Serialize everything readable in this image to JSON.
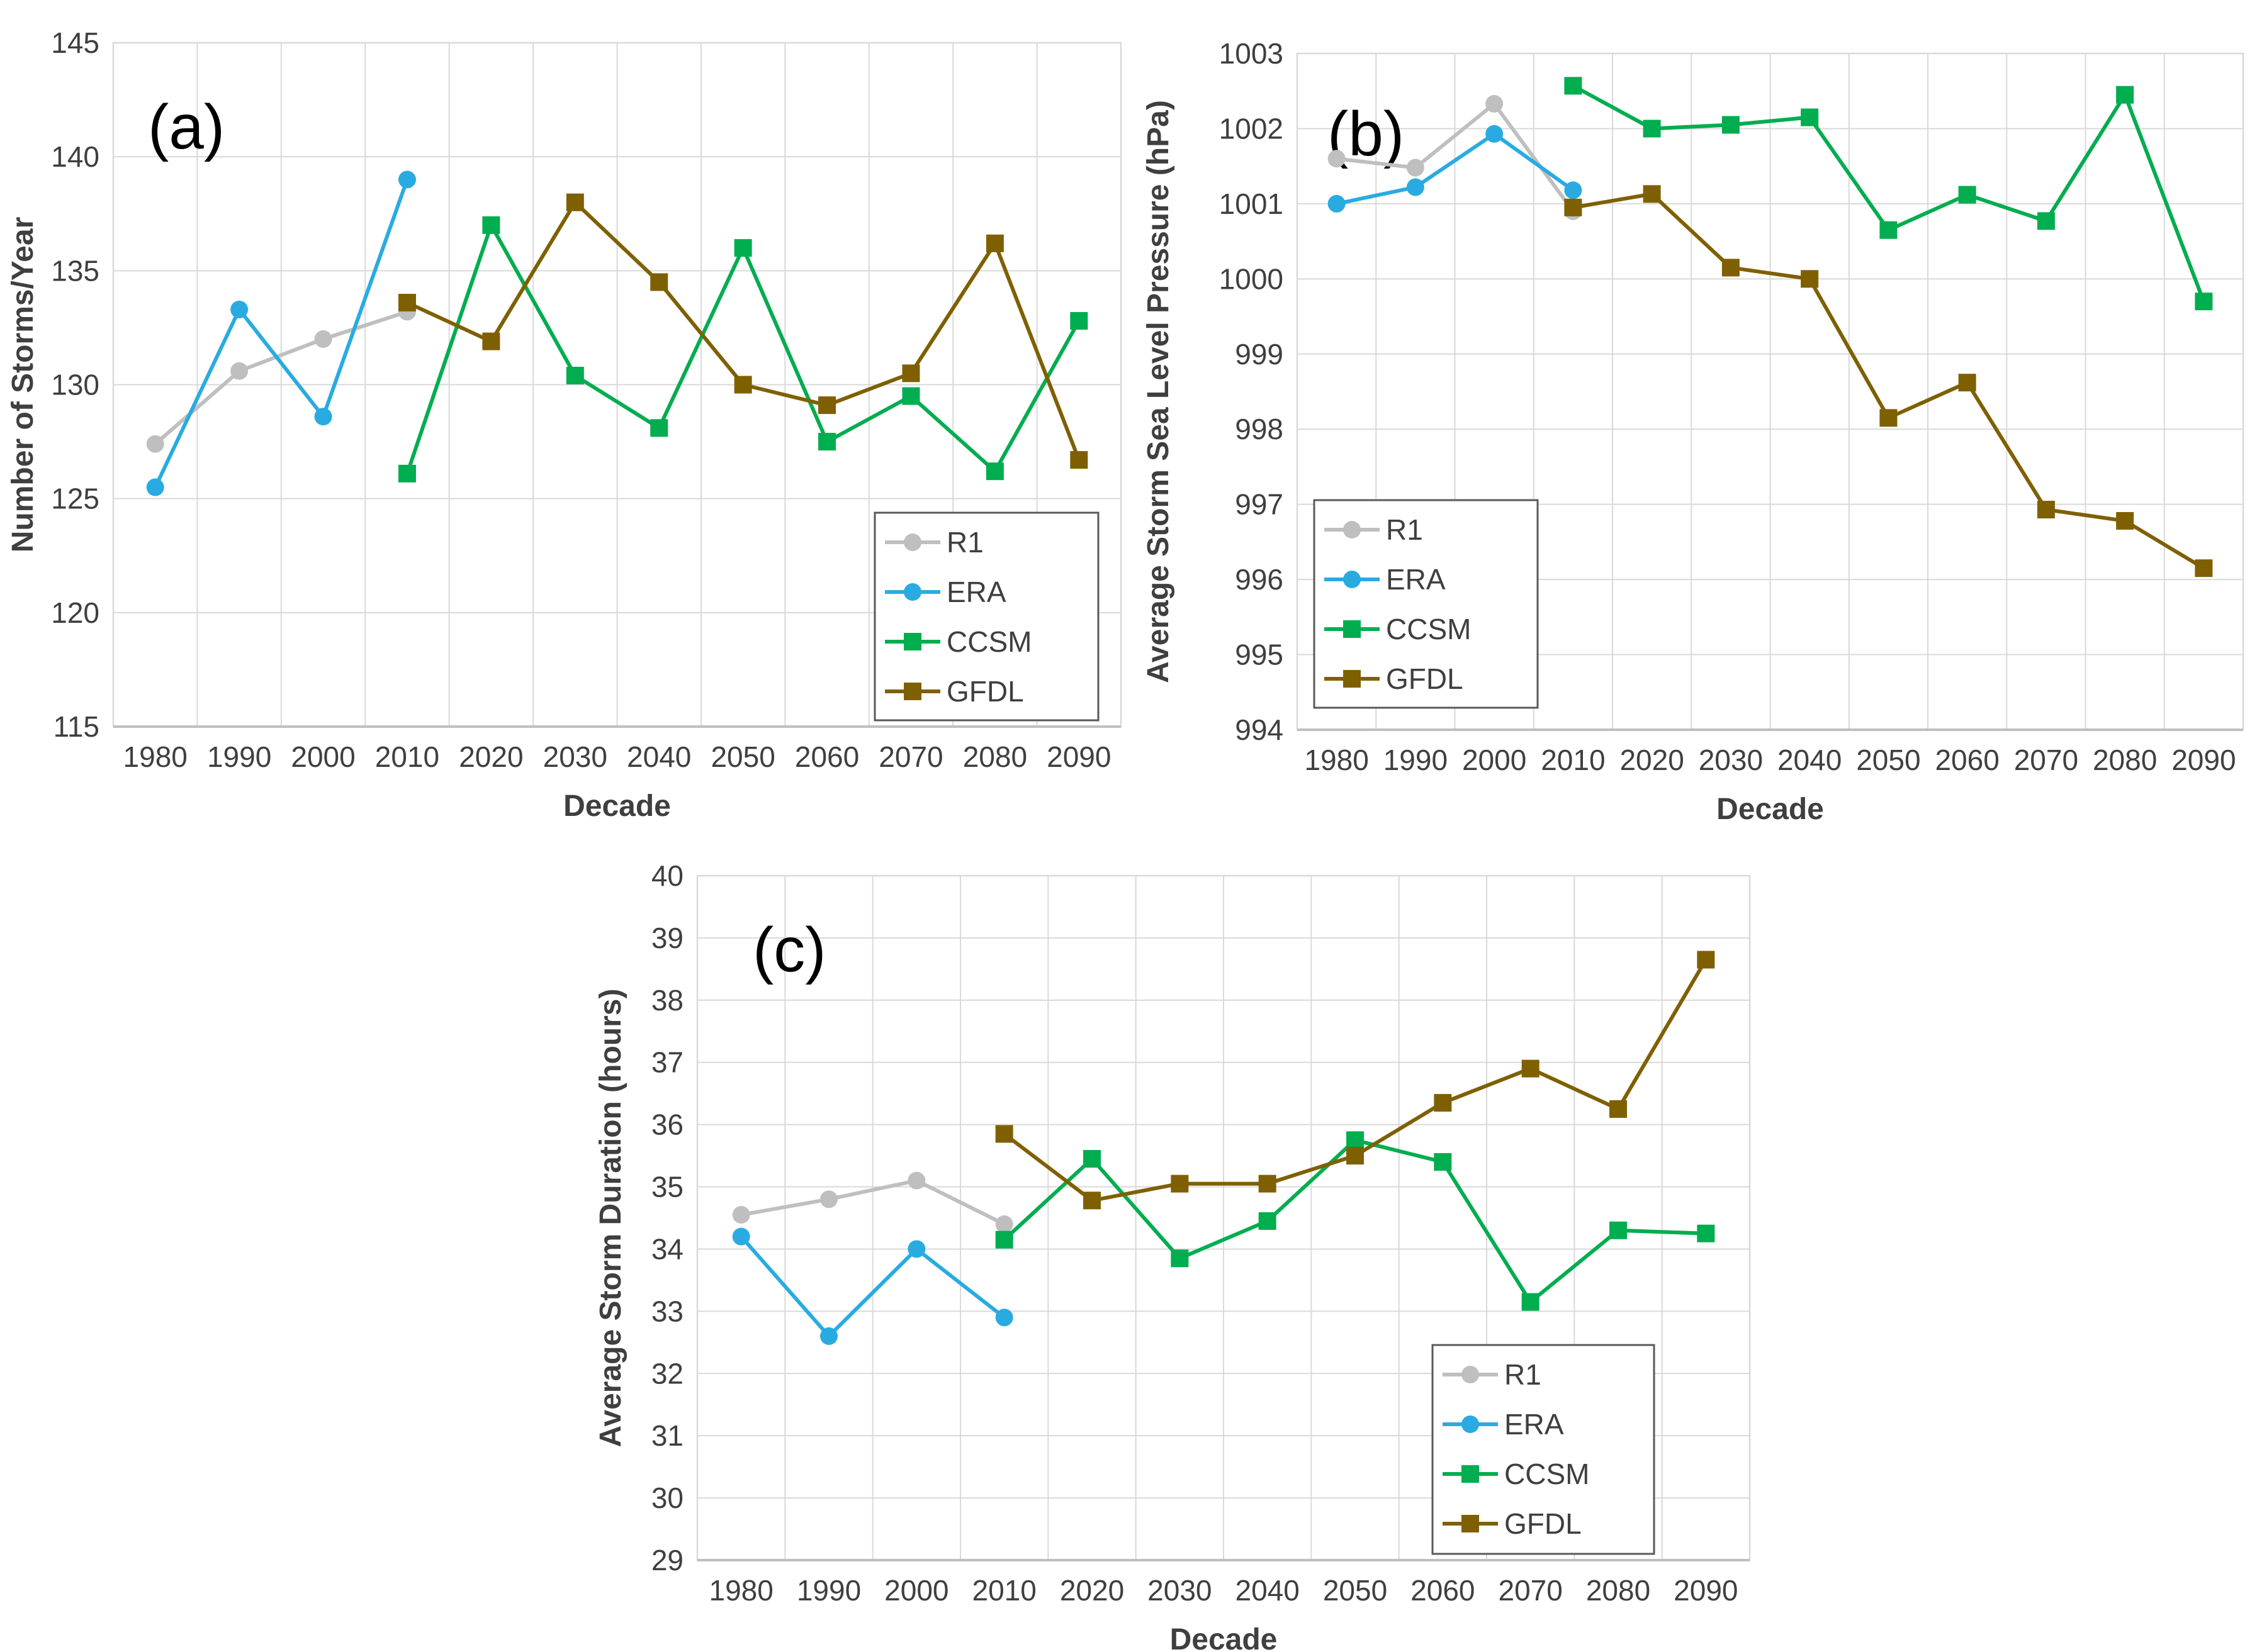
{
  "figure": {
    "description": "Three-panel decadal storm statistics figure",
    "panels": [
      "(a)",
      "(b)",
      "(c)"
    ]
  },
  "legend": {
    "entries": [
      "R1",
      "ERA",
      "CCSM",
      "GFDL"
    ]
  },
  "colors": {
    "R1": "#BFBFBF",
    "ERA": "#29ABE2",
    "CCSM": "#00AD4F",
    "GFDL": "#7F6000",
    "grid": "#D9D9D9",
    "axis_text": "#3F3F3F",
    "legend_border": "#595959",
    "panel_letter": "#000000"
  },
  "chart_data": [
    {
      "type": "line",
      "panel_label": "(a)",
      "xlabel": "Decade",
      "ylabel": "Number of Storms/Year",
      "x_categories": [
        "1980",
        "1990",
        "2000",
        "2010",
        "2020",
        "2030",
        "2040",
        "2050",
        "2060",
        "2070",
        "2080",
        "2090"
      ],
      "ylim": [
        115,
        145
      ],
      "ytick_step": 5,
      "grid": true,
      "legend_position": "bottom-right",
      "series": [
        {
          "name": "R1",
          "color": "#BFBFBF",
          "marker": "circle",
          "x": [
            "1980",
            "1990",
            "2000",
            "2010"
          ],
          "values": [
            127.4,
            130.6,
            132.0,
            133.2
          ]
        },
        {
          "name": "ERA",
          "color": "#29ABE2",
          "marker": "circle",
          "x": [
            "1980",
            "1990",
            "2000",
            "2010"
          ],
          "values": [
            125.5,
            133.3,
            128.6,
            139.0
          ]
        },
        {
          "name": "CCSM",
          "color": "#00AD4F",
          "marker": "square",
          "x": [
            "2010",
            "2020",
            "2030",
            "2040",
            "2050",
            "2060",
            "2070",
            "2080",
            "2090"
          ],
          "values": [
            126.1,
            137.0,
            130.4,
            128.1,
            136.0,
            127.5,
            129.5,
            126.2,
            132.8
          ]
        },
        {
          "name": "GFDL",
          "color": "#7F6000",
          "marker": "square",
          "x": [
            "2010",
            "2020",
            "2030",
            "2040",
            "2050",
            "2060",
            "2070",
            "2080",
            "2090"
          ],
          "values": [
            133.6,
            131.9,
            138.0,
            134.5,
            130.0,
            129.1,
            130.5,
            136.2,
            126.7
          ]
        }
      ]
    },
    {
      "type": "line",
      "panel_label": "(b)",
      "xlabel": "Decade",
      "ylabel": "Average Storm Sea Level Pressure (hPa)",
      "x_categories": [
        "1980",
        "1990",
        "2000",
        "2010",
        "2020",
        "2030",
        "2040",
        "2050",
        "2060",
        "2070",
        "2080",
        "2090"
      ],
      "ylim": [
        994,
        1003
      ],
      "ytick_step": 1,
      "grid": true,
      "legend_position": "bottom-left",
      "series": [
        {
          "name": "R1",
          "color": "#BFBFBF",
          "marker": "circle",
          "x": [
            "1980",
            "1990",
            "2000",
            "2010"
          ],
          "values": [
            1001.6,
            1001.48,
            1002.33,
            1000.9
          ]
        },
        {
          "name": "ERA",
          "color": "#29ABE2",
          "marker": "circle",
          "x": [
            "1980",
            "1990",
            "2000",
            "2010"
          ],
          "values": [
            1001.0,
            1001.22,
            1001.93,
            1001.18
          ]
        },
        {
          "name": "CCSM",
          "color": "#00AD4F",
          "marker": "square",
          "x": [
            "2010",
            "2020",
            "2030",
            "2040",
            "2050",
            "2060",
            "2070",
            "2080",
            "2090"
          ],
          "values": [
            1002.57,
            1002.0,
            1002.05,
            1002.15,
            1000.65,
            1001.12,
            1000.77,
            1002.45,
            999.7
          ]
        },
        {
          "name": "GFDL",
          "color": "#7F6000",
          "marker": "square",
          "x": [
            "2010",
            "2020",
            "2030",
            "2040",
            "2050",
            "2060",
            "2070",
            "2080",
            "2090"
          ],
          "values": [
            1000.95,
            1001.13,
            1000.15,
            1000.0,
            998.15,
            998.62,
            996.93,
            996.78,
            996.15
          ]
        }
      ]
    },
    {
      "type": "line",
      "panel_label": "(c)",
      "xlabel": "Decade",
      "ylabel": "Average Storm Duration (hours)",
      "x_categories": [
        "1980",
        "1990",
        "2000",
        "2010",
        "2020",
        "2030",
        "2040",
        "2050",
        "2060",
        "2070",
        "2080",
        "2090"
      ],
      "ylim": [
        29,
        40
      ],
      "ytick_step": 1,
      "grid": true,
      "legend_position": "bottom-right",
      "series": [
        {
          "name": "R1",
          "color": "#BFBFBF",
          "marker": "circle",
          "x": [
            "1980",
            "1990",
            "2000",
            "2010"
          ],
          "values": [
            34.55,
            34.8,
            35.1,
            34.4
          ]
        },
        {
          "name": "ERA",
          "color": "#29ABE2",
          "marker": "circle",
          "x": [
            "1980",
            "1990",
            "2000",
            "2010"
          ],
          "values": [
            34.2,
            32.6,
            34.0,
            32.9
          ]
        },
        {
          "name": "CCSM",
          "color": "#00AD4F",
          "marker": "square",
          "x": [
            "2010",
            "2020",
            "2030",
            "2040",
            "2050",
            "2060",
            "2070",
            "2080",
            "2090"
          ],
          "values": [
            34.15,
            35.45,
            33.85,
            34.45,
            35.75,
            35.4,
            33.15,
            34.3,
            34.25
          ]
        },
        {
          "name": "GFDL",
          "color": "#7F6000",
          "marker": "square",
          "x": [
            "2010",
            "2020",
            "2030",
            "2040",
            "2050",
            "2060",
            "2070",
            "2080",
            "2090"
          ],
          "values": [
            35.85,
            34.78,
            35.05,
            35.05,
            35.5,
            36.35,
            36.9,
            36.25,
            38.65
          ]
        }
      ]
    }
  ]
}
